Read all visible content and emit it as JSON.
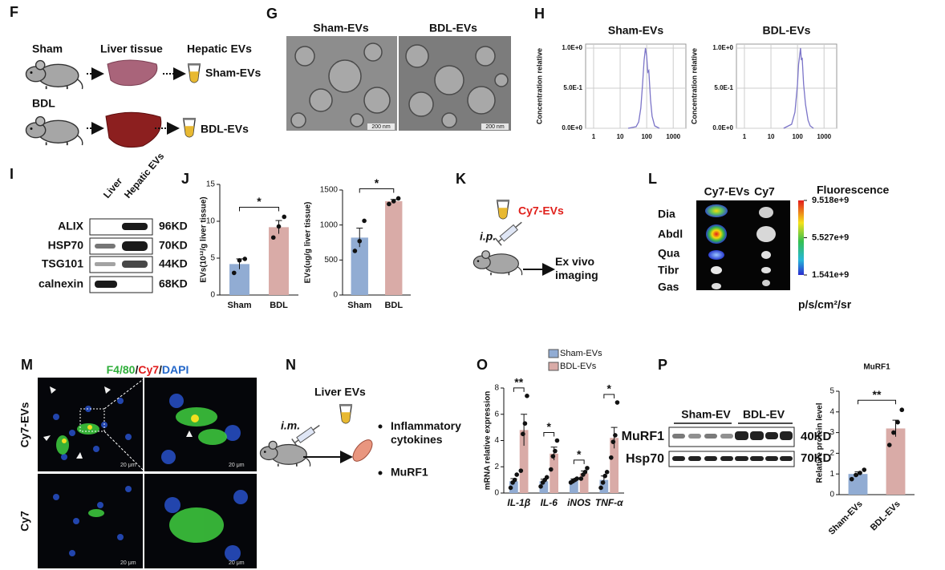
{
  "F": {
    "letter": "F",
    "sham": "Sham",
    "bdl": "BDL",
    "tissue": "Liver tissue",
    "hepatic": "Hepatic EVs",
    "sham_evs": "Sham-EVs",
    "bdl_evs": "BDL-EVs"
  },
  "G": {
    "letter": "G",
    "left": "Sham-EVs",
    "right": "BDL-EVs",
    "scale_left": "200 nm",
    "scale_right": "200 nm"
  },
  "H": {
    "letter": "H",
    "charts": [
      {
        "type": "line",
        "title": "Sham-EVs",
        "ylabel": "Concentration relative",
        "log_x": true,
        "grid": true,
        "color": "#7b74c8",
        "x": [
          20,
          40,
          50,
          60,
          70,
          80,
          90,
          100,
          110,
          120,
          140,
          160,
          200,
          300
        ],
        "values": [
          0,
          0.02,
          0.08,
          0.25,
          0.55,
          0.85,
          1.0,
          0.9,
          0.7,
          0.72,
          0.35,
          0.15,
          0.03,
          0
        ],
        "xlim": [
          0.5,
          3000
        ],
        "xticks": [
          1,
          10,
          100,
          1000
        ],
        "ylim": [
          0,
          1.05
        ],
        "yticks": [
          {
            "value": 0,
            "label": "0.0E+0"
          },
          {
            "value": 0.5,
            "label": "5.0E-1"
          },
          {
            "value": 1,
            "label": "1.0E+0"
          }
        ]
      },
      {
        "type": "line",
        "title": "BDL-EVs",
        "ylabel": "Concentration relative",
        "log_x": true,
        "grid": true,
        "color": "#7b74c8",
        "x": [
          30,
          60,
          80,
          100,
          110,
          120,
          130,
          140,
          150,
          170,
          200,
          250,
          300,
          400
        ],
        "values": [
          0,
          0.05,
          0.2,
          0.55,
          0.8,
          0.9,
          1.0,
          0.85,
          0.88,
          0.55,
          0.3,
          0.1,
          0.03,
          0
        ],
        "xlim": [
          0.5,
          3000
        ],
        "xticks": [
          1,
          10,
          100,
          1000
        ],
        "ylim": [
          0,
          1.05
        ],
        "yticks": [
          {
            "value": 0,
            "label": "0.0E+0"
          },
          {
            "value": 0.5,
            "label": "5.0E-1"
          },
          {
            "value": 1,
            "label": "1.0E+0"
          }
        ]
      }
    ]
  },
  "I": {
    "letter": "I",
    "lanes": [
      "Liver",
      "Hepatic EVs"
    ],
    "proteins": [
      "ALIX",
      "HSP70",
      "TSG101",
      "calnexin"
    ],
    "sizes": [
      "96KD",
      "70KD",
      "44KD",
      "68KD"
    ]
  },
  "J": {
    "letter": "J",
    "charts": [
      {
        "type": "bar",
        "ylabel": "EVs(10¹²/g liver tissue)",
        "categories": [
          "Sham",
          "BDL"
        ],
        "colors": [
          "#91acd3",
          "#d9aba7"
        ],
        "values": [
          4.2,
          9.2
        ],
        "errors": [
          0.7,
          0.9
        ],
        "points": [
          [
            3.0,
            4.7,
            4.9
          ],
          [
            7.8,
            9.3,
            10.6
          ]
        ],
        "ylim": [
          0,
          15
        ],
        "yticks": [
          0,
          5,
          10,
          15
        ],
        "significance": "*"
      },
      {
        "type": "bar",
        "ylabel": "EVs(ug/g liver tissue)",
        "categories": [
          "Sham",
          "BDL"
        ],
        "colors": [
          "#91acd3",
          "#d9aba7"
        ],
        "values": [
          820,
          1340
        ],
        "errors": [
          135,
          25
        ],
        "points": [
          [
            630,
            770,
            1060
          ],
          [
            1300,
            1340,
            1380
          ]
        ],
        "ylim": [
          0,
          1500
        ],
        "yticks": [
          0,
          500,
          1000,
          1500
        ],
        "significance": "*"
      }
    ]
  },
  "K": {
    "letter": "K",
    "tracer": "Cy7-EVs",
    "route": "i.p.",
    "readout": "Ex vivo imaging"
  },
  "L": {
    "letter": "L",
    "columns": [
      "Cy7-EVs",
      "Cy7"
    ],
    "organs": [
      "Dia",
      "Abdl",
      "Qua",
      "Tibr",
      "Gas"
    ],
    "scale_title": "Fluorescence",
    "scale_ticks": [
      {
        "value": 9518000000,
        "label": "9.518e+9"
      },
      {
        "value": 5527000000,
        "label": "5.527e+9"
      },
      {
        "value": 1541000000,
        "label": "1.541e+9"
      }
    ],
    "unit": "p/s/cm²/sr"
  },
  "M": {
    "letter": "M",
    "stain": [
      "F4/80",
      "/",
      "Cy7",
      "/",
      "DAPI"
    ],
    "rows": [
      "Cy7-EVs",
      "Cy7"
    ],
    "scale_bars": [
      "20 μm",
      "20 μm",
      "20 μm",
      "20 μm"
    ]
  },
  "N": {
    "letter": "N",
    "material": "Liver EVs",
    "route": "i.m.",
    "outcomes": [
      "Inflammatory cytokines",
      "MuRF1"
    ]
  },
  "O": {
    "letter": "O",
    "chart": {
      "type": "bar",
      "ylabel": "mRNA relative expression",
      "categories": [
        "IL-1β",
        "IL-6",
        "iNOS",
        "TNF-α"
      ],
      "series": [
        {
          "name": "Sham-EVs",
          "color": "#91acd3",
          "values": [
            0.9,
            0.9,
            1.0,
            1.0
          ],
          "errors": [
            0.2,
            0.15,
            0.08,
            0.3
          ],
          "points": [
            [
              0.4,
              0.8,
              1.0,
              1.4
            ],
            [
              0.5,
              0.8,
              1.0,
              1.2
            ],
            [
              0.8,
              0.9,
              1.0,
              1.1
            ],
            [
              0.4,
              0.8,
              1.3,
              1.6
            ]
          ]
        },
        {
          "name": "BDL-EVs",
          "color": "#d9aba7",
          "values": [
            4.8,
            3.0,
            1.5,
            4.2
          ],
          "errors": [
            1.2,
            0.5,
            0.18,
            0.8
          ],
          "points": [
            [
              1.7,
              4.5,
              5.3,
              7.4
            ],
            [
              1.8,
              2.8,
              3.2,
              4.0
            ],
            [
              1.1,
              1.4,
              1.6,
              1.9
            ],
            [
              2.7,
              3.9,
              4.4,
              6.9
            ]
          ]
        }
      ],
      "ylim": [
        0,
        8
      ],
      "yticks": [
        0,
        2,
        4,
        6,
        8
      ],
      "significance": [
        "**",
        "*",
        "*",
        "*"
      ]
    }
  },
  "P": {
    "letter": "P",
    "blot_groups": [
      "Sham-EV",
      "BDL-EV"
    ],
    "proteins": [
      "MuRF1",
      "Hsp70"
    ],
    "sizes": [
      "40KD",
      "70KD"
    ],
    "chart": {
      "type": "bar",
      "title": "MuRF1",
      "ylabel": "Relative protein level",
      "categories": [
        "Sham-EVs",
        "BDL-EVs"
      ],
      "colors": [
        "#91acd3",
        "#d9aba7"
      ],
      "values": [
        1.0,
        3.2
      ],
      "errors": [
        0.1,
        0.4
      ],
      "points": [
        [
          0.75,
          0.95,
          1.05,
          1.2
        ],
        [
          2.4,
          3.0,
          3.5,
          4.1
        ]
      ],
      "ylim": [
        0,
        5
      ],
      "yticks": [
        0,
        1,
        2,
        3,
        4,
        5
      ],
      "significance": "**"
    }
  }
}
